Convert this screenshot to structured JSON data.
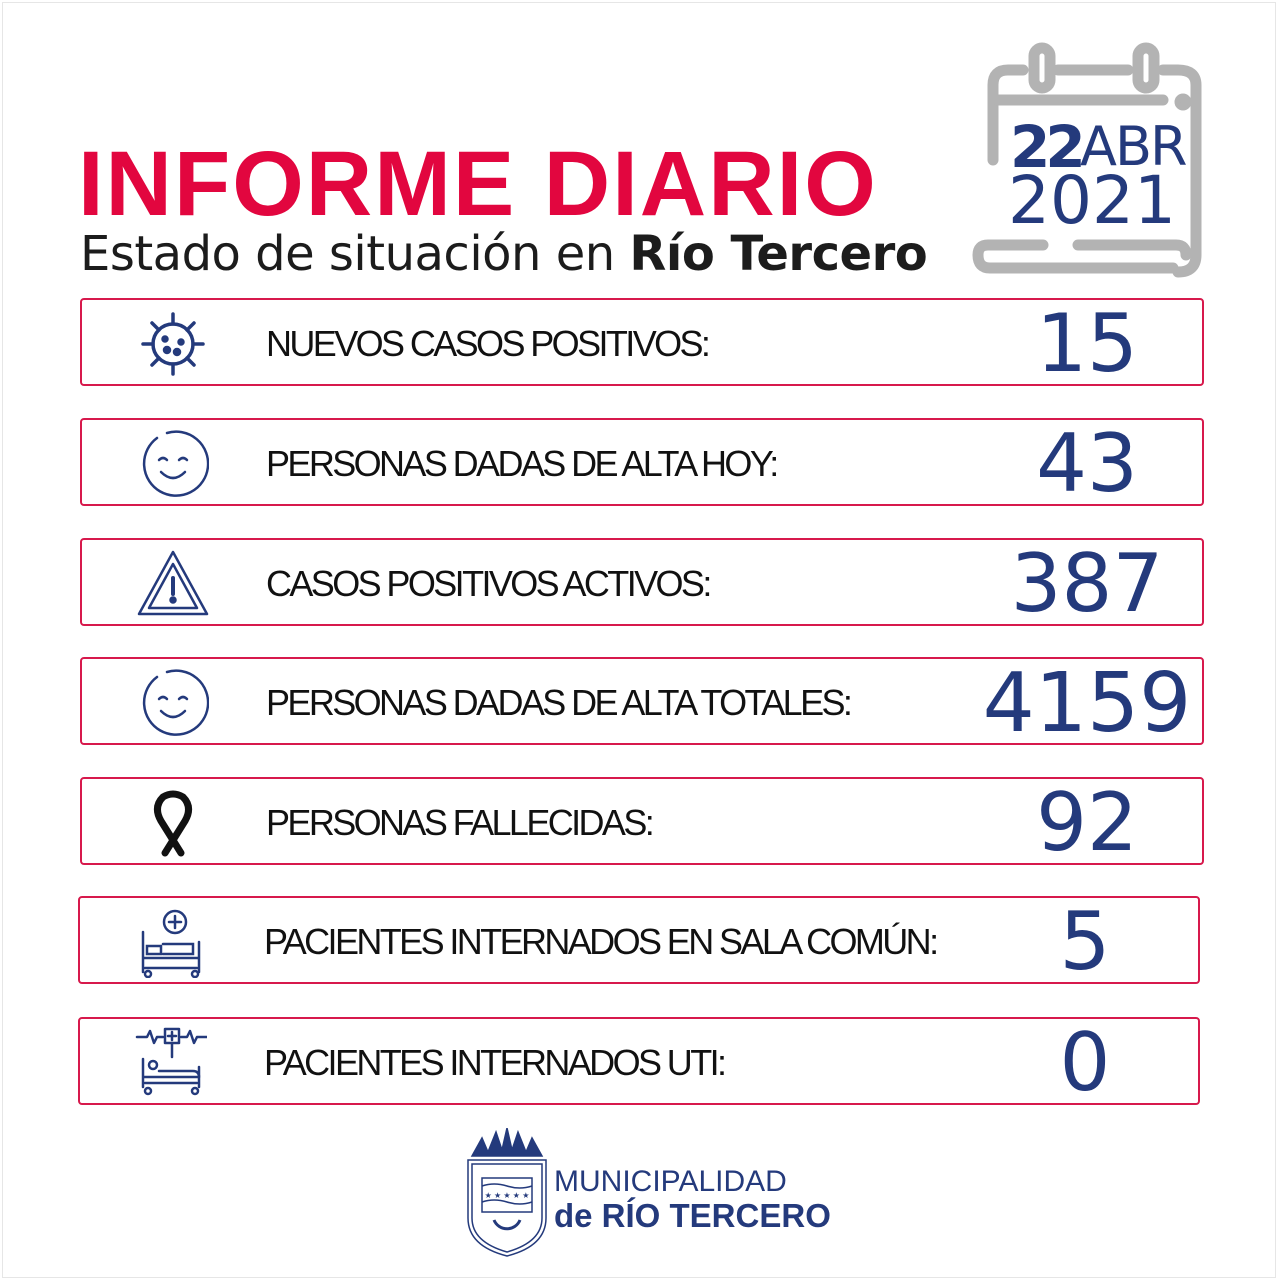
{
  "header": {
    "title": "INFORME DIARIO",
    "subtitle_prefix": "Estado de situación en ",
    "subtitle_place": "Río Tercero"
  },
  "date": {
    "day": "22",
    "month": "ABR",
    "year": "2021"
  },
  "stats": [
    {
      "icon": "virus-icon",
      "label": "NUEVOS CASOS POSITIVOS:",
      "value": "15"
    },
    {
      "icon": "smiley-icon",
      "label": "PERSONAS DADAS DE ALTA HOY:",
      "value": "43"
    },
    {
      "icon": "warning-icon",
      "label": "CASOS POSITIVOS ACTIVOS:",
      "value": "387"
    },
    {
      "icon": "smiley-icon",
      "label": "PERSONAS DADAS DE ALTA TOTALES:",
      "value": "4159"
    },
    {
      "icon": "mourning-ribbon-icon",
      "label": "PERSONAS FALLECIDAS:",
      "value": "92"
    },
    {
      "icon": "hospital-bed-icon",
      "label": "PACIENTES INTERNADOS EN SALA COMÚN:",
      "value": "5"
    },
    {
      "icon": "icu-bed-icon",
      "label": "PACIENTES INTERNADOS UTI:",
      "value": "0"
    }
  ],
  "footer": {
    "line1": "MUNICIPALIDAD",
    "line2": "de RÍO TERCERO"
  },
  "colors": {
    "accent_red": "#e2063f",
    "navy": "#243a7c",
    "border": "#d7194c",
    "calendar_gray": "#b3b3b3"
  }
}
